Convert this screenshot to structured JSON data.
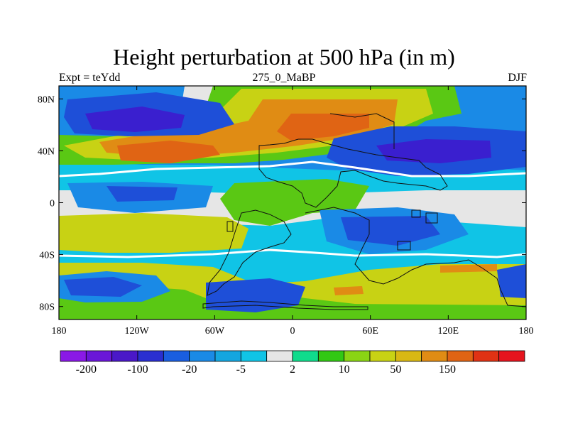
{
  "chart_data": {
    "type": "heatmap",
    "title": "Height perturbation at 500 hPa (in m)",
    "subtitle_left": "Expt = teYdd",
    "subtitle_center": "275_0_MaBP",
    "subtitle_right": "DJF",
    "x_ticks": [
      "180",
      "120W",
      "60W",
      "0",
      "60E",
      "120E",
      "180"
    ],
    "y_ticks": [
      "80N",
      "40N",
      "0",
      "40S",
      "80S"
    ],
    "x_range": [
      -180,
      180
    ],
    "y_range": [
      -90,
      90
    ],
    "x_tick_values": [
      -180,
      -120,
      -60,
      0,
      60,
      120,
      180
    ],
    "y_tick_values": [
      80,
      40,
      0,
      -40,
      -80
    ],
    "colorbar": {
      "colors": [
        "#8a19e6",
        "#6a16d8",
        "#4a18c8",
        "#2a2fd0",
        "#1a5ee0",
        "#1a8ae6",
        "#14a6e0",
        "#10c4e6",
        "#e6e6e6",
        "#10dc8c",
        "#32c814",
        "#8ad414",
        "#c8d214",
        "#d9b814",
        "#e08c14",
        "#e06414",
        "#e03214",
        "#e6141e"
      ],
      "labels": [
        "-200",
        "-100",
        "-20",
        "-5",
        "2",
        "10",
        "50",
        "150"
      ]
    },
    "palette": {
      "deep_negative": "#3a1fcf",
      "strong_negative": "#1e4fd8",
      "negative": "#1a8ae6",
      "weak_negative": "#10c4e6",
      "neutral": "#e6e6e6",
      "weak_positive": "#10dc8c",
      "positive": "#5ac814",
      "mid_positive": "#c8d214",
      "strong_positive": "#e08c14",
      "max_positive": "#e06414"
    }
  }
}
